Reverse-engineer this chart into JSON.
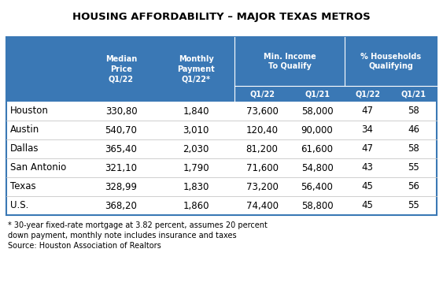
{
  "title": "HOUSING AFFORDABILITY – MAJOR TEXAS METROS",
  "header_bg_color": "#3a78b5",
  "header_text_color": "#ffffff",
  "rows": [
    [
      "Houston",
      "330,80",
      "1,840",
      "73,600",
      "58,000",
      "47",
      "58"
    ],
    [
      "Austin",
      "540,70",
      "3,010",
      "120,40",
      "90,000",
      "34",
      "46"
    ],
    [
      "Dallas",
      "365,40",
      "2,030",
      "81,200",
      "61,600",
      "47",
      "58"
    ],
    [
      "San Antonio",
      "321,10",
      "1,790",
      "71,600",
      "54,800",
      "43",
      "55"
    ],
    [
      "Texas",
      "328,99",
      "1,830",
      "73,200",
      "56,400",
      "45",
      "56"
    ],
    [
      "U.S.",
      "368,20",
      "1,860",
      "74,400",
      "58,800",
      "45",
      "55"
    ]
  ],
  "footnote1": "* 30-year fixed-rate mortgage at 3.82 percent, assumes 20 percent",
  "footnote2": "down payment, monthly note includes insurance and taxes",
  "footnote3": "Source: Houston Association of Realtors",
  "bg_color": "#ffffff",
  "border_color": "#3a78b5"
}
